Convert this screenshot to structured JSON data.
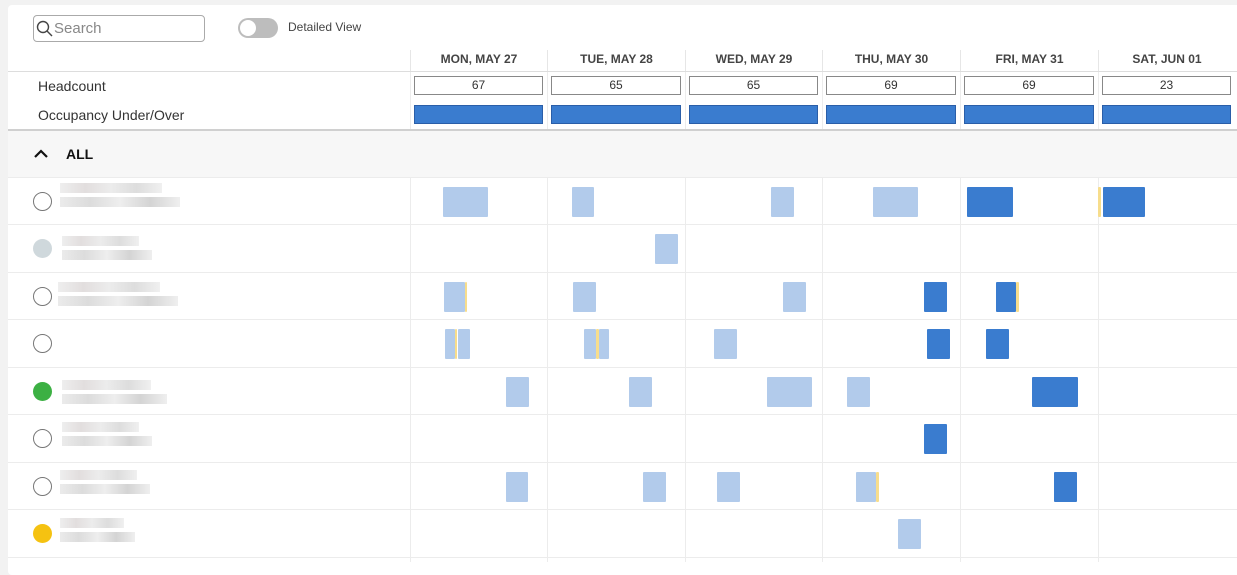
{
  "toolbar": {
    "search_placeholder": "Search",
    "detailed_view_label": "Detailed View",
    "detailed_view_on": false
  },
  "days": [
    "MON, MAY 27",
    "TUE, MAY 28",
    "WED, MAY 29",
    "THU, MAY 30",
    "FRI, MAY 31",
    "SAT, JUN 01"
  ],
  "summary": {
    "headcount_label": "Headcount",
    "occupancy_label": "Occupancy Under/Over",
    "headcount": [
      "67",
      "65",
      "65",
      "69",
      "69",
      "23"
    ]
  },
  "group": {
    "label": "ALL",
    "expanded": true
  },
  "colors": {
    "booking_light": "#b2cbeb",
    "booking_dark": "#3a7ccf",
    "marker": "#f7dd8c",
    "status_green": "#3cb043",
    "status_yellow": "#f5c211",
    "status_gray": "#cfd8dc"
  },
  "people": [
    {
      "status": "none"
    },
    {
      "status": "gray"
    },
    {
      "status": "none"
    },
    {
      "status": "none"
    },
    {
      "status": "green"
    },
    {
      "status": "none"
    },
    {
      "status": "none"
    },
    {
      "status": "yellow"
    }
  ]
}
